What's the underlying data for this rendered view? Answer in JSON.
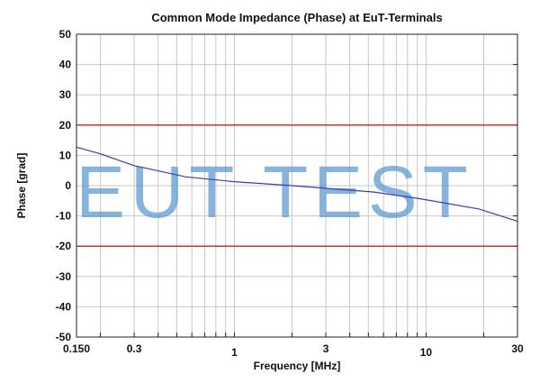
{
  "chart_data": {
    "type": "line",
    "title": "Common Mode Impedance (Phase) at EuT-Terminals",
    "xlabel": "Frequency [MHz]",
    "ylabel": "Phase [grad]",
    "xscale": "log",
    "xlim": [
      0.15,
      30
    ],
    "ylim": [
      -50,
      50
    ],
    "grid": true,
    "xticks": [
      0.15,
      0.3,
      1,
      3,
      10,
      30
    ],
    "xtick_labels": [
      "0.150",
      "0.3",
      "1",
      "3",
      "10",
      "30"
    ],
    "yticks": [
      50,
      40,
      30,
      20,
      10,
      0,
      -10,
      -20,
      -30,
      -40,
      -50
    ],
    "ytick_labels": [
      "50",
      "40",
      "30",
      "20",
      "10",
      "0",
      "-10",
      "-20",
      "-30",
      "-40",
      "-50"
    ],
    "limit_lines": [
      20,
      -20
    ],
    "colors": {
      "series": "#3a3ac8",
      "limits": "#cc2222",
      "grid": "#c8c8c8",
      "watermark": "#5b9bd5"
    },
    "series": [
      {
        "x": [
          0.15,
          0.2,
          0.3,
          0.56,
          1,
          2,
          5.35,
          9.2,
          18.9,
          30
        ],
        "y": [
          12.7,
          10.5,
          6.6,
          2.9,
          1.3,
          0,
          -2.1,
          -4.3,
          -7.7,
          -11.8
        ]
      }
    ],
    "watermark": "EUT TEST"
  }
}
